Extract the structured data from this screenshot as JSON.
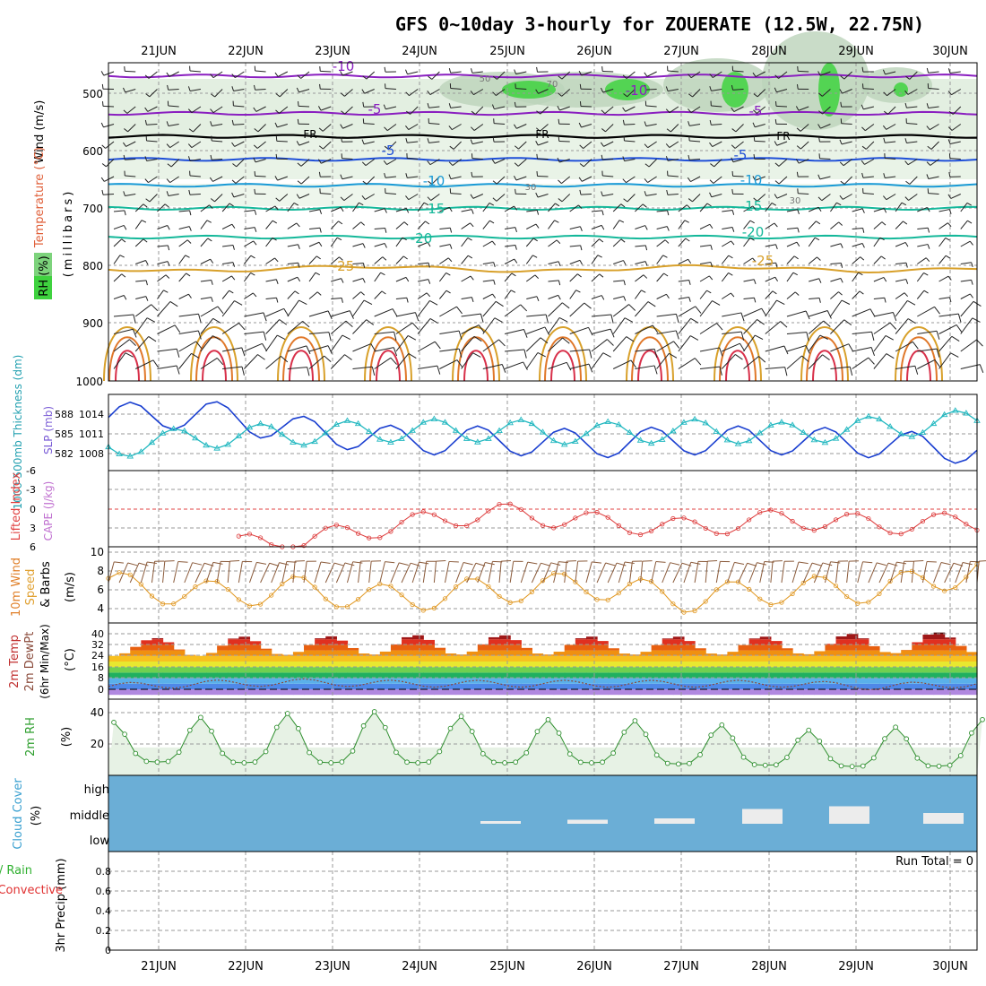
{
  "title": "GFS 0~10day 3-hourly for ZOUERATE (12.5W, 22.75N)",
  "days": [
    "21JUN",
    "22JUN",
    "23JUN",
    "24JUN",
    "25JUN",
    "26JUN",
    "27JUN",
    "28JUN",
    "29JUN",
    "30JUN"
  ],
  "colors": {
    "temp_purple": "#8a1fc0",
    "freezing": "#000000",
    "temp_blue": "#1f4fd8",
    "temp_lightblue": "#1a9ad6",
    "temp_teal": "#15b89a",
    "temp_orange": "#d8a02a",
    "rh_green": "#3fd23f",
    "slp": "#1a3fd0",
    "thickness": "#22b8c0",
    "lifted": "#dd3a3a",
    "wind10": "#e0961e",
    "cloud_bg": "#6baed6",
    "rh2m": "#2f8f2f"
  },
  "upper": {
    "ylabel_wind": "Wind (m/s)",
    "ylabel_temp": "Temperature (°C)",
    "ylabel_rh": "RH (%)",
    "ylabel_mb": "(millibars)",
    "pressure_ticks": [
      "500",
      "600",
      "700",
      "800",
      "900",
      "1000"
    ],
    "isotherm_labels": [
      "-10",
      "-10",
      "-5",
      "-5",
      "FR",
      "FR",
      "FR",
      "-5",
      "-5",
      "-10",
      "-10",
      "-15",
      "-15",
      "-20",
      "-20",
      "-25",
      "-25"
    ],
    "rh_labels": [
      "50",
      "70",
      "30",
      "30"
    ]
  },
  "slp_panel": {
    "ylabel_thickness": "1000-500mb Thickness (dm)",
    "ylabel_slp": "SLP (mb)",
    "thickness_ticks": [
      "588",
      "585",
      "582"
    ],
    "slp_ticks": [
      "1014",
      "1011",
      "1008"
    ]
  },
  "cape_panel": {
    "ylabel_li": "Lifted Index",
    "ylabel_cape": "CAPE (J/kg)",
    "li_ticks": [
      "-6",
      "-3",
      "0",
      "3",
      "6"
    ]
  },
  "wind_panel": {
    "ylabel": "10m Wind Speed (m/s) & Barbs",
    "ticks": [
      "10",
      "8",
      "6",
      "4"
    ]
  },
  "temp_panel": {
    "ylabel": "2m Temp 2m DewPt (6hr Min/Max) (°C)",
    "ticks": [
      "40",
      "32",
      "24",
      "16",
      "8",
      "0"
    ]
  },
  "rh_panel": {
    "ylabel": "2m RH (%)",
    "ticks": [
      "40",
      "20"
    ]
  },
  "cloud_panel": {
    "ylabel": "Cloud Cover (%)",
    "levels": [
      "high",
      "middle",
      "low"
    ]
  },
  "precip_panel": {
    "ylabel_total_rain": "Total / Rain",
    "ylabel_convective": "Convective",
    "ylabel": "3hr Precip (mm)",
    "ticks": [
      "0.8",
      "0.6",
      "0.4",
      "0.2",
      "0"
    ],
    "run_total": "Run Total = 0"
  },
  "chart_data": [
    {
      "type": "line",
      "title": "GFS 0~10day 3-hourly for ZOUERATE (12.5W, 22.75N)",
      "panel": "Sea level pressure and 1000-500mb thickness",
      "x": [
        "21JUN",
        "22JUN",
        "23JUN",
        "24JUN",
        "25JUN",
        "26JUN",
        "27JUN",
        "28JUN",
        "29JUN",
        "30JUN"
      ],
      "series": [
        {
          "name": "SLP (mb)",
          "values": [
            1013.5,
            1014.0,
            1011.5,
            1010.0,
            1010.0,
            1009.5,
            1010.0,
            1010.0,
            1009.5,
            1008.5
          ]
        },
        {
          "name": "1000-500mb Thickness (dm)",
          "values": [
            583.0,
            584.5,
            585.0,
            585.5,
            585.5,
            585.0,
            585.5,
            585.0,
            586.0,
            587.0
          ]
        }
      ]
    },
    {
      "type": "line",
      "panel": "Lifted Index",
      "x": [
        "21JUN",
        "22JUN",
        "23JUN",
        "24JUN",
        "25JUN",
        "26JUN",
        "27JUN",
        "28JUN",
        "29JUN",
        "30JUN"
      ],
      "series": [
        {
          "name": "Lifted Index",
          "values": [
            6.5,
            6.0,
            5.0,
            2.5,
            0.5,
            2.0,
            3.0,
            1.5,
            2.5,
            2.0
          ]
        }
      ],
      "ylim": [
        6,
        -6
      ]
    },
    {
      "type": "line",
      "panel": "10m Wind Speed (m/s)",
      "x": [
        "21JUN",
        "22JUN",
        "23JUN",
        "24JUN",
        "25JUN",
        "26JUN",
        "27JUN",
        "28JUN",
        "29JUN",
        "30JUN"
      ],
      "series": [
        {
          "name": "10m Wind Speed",
          "values": [
            6.5,
            5.5,
            6.0,
            5.0,
            6.0,
            6.5,
            5.0,
            6.0,
            6.0,
            8.0
          ]
        }
      ],
      "ylim": [
        3,
        10
      ]
    },
    {
      "type": "line",
      "panel": "2m Temp and DewPt (°C)",
      "x": [
        "21JUN",
        "22JUN",
        "23JUN",
        "24JUN",
        "25JUN",
        "26JUN",
        "27JUN",
        "28JUN",
        "29JUN",
        "30JUN"
      ],
      "series": [
        {
          "name": "2m Temp max",
          "values": [
            36,
            38,
            38,
            39,
            39,
            38,
            38,
            38,
            41,
            41
          ]
        },
        {
          "name": "2m Temp min",
          "values": [
            24,
            24,
            25,
            25,
            25,
            25,
            25,
            25,
            26,
            26
          ]
        },
        {
          "name": "2m DewPt",
          "values": [
            2,
            4,
            5,
            4,
            4,
            4,
            4,
            4,
            2,
            4
          ]
        }
      ],
      "ylim": [
        -4,
        44
      ]
    },
    {
      "type": "area",
      "panel": "2m RH (%)",
      "x": [
        "21JUN",
        "22JUN",
        "23JUN",
        "24JUN",
        "25JUN",
        "26JUN",
        "27JUN",
        "28JUN",
        "29JUN",
        "30JUN"
      ],
      "series": [
        {
          "name": "2m RH max",
          "values": [
            38,
            42,
            45,
            46,
            40,
            40,
            38,
            32,
            34,
            40
          ]
        },
        {
          "name": "2m RH min",
          "values": [
            10,
            9,
            9,
            9,
            9,
            9,
            8,
            7,
            6,
            7
          ]
        }
      ],
      "ylim": [
        0,
        50
      ]
    },
    {
      "type": "bar",
      "panel": "Cloud Cover (%) middle layer",
      "x": [
        "21JUN",
        "22JUN",
        "23JUN",
        "24JUN",
        "25JUN",
        "26JUN",
        "27JUN",
        "28JUN",
        "29JUN",
        "30JUN"
      ],
      "series": [
        {
          "name": "middle",
          "values": [
            0,
            0,
            0,
            0,
            10,
            15,
            20,
            55,
            65,
            40
          ]
        }
      ],
      "ylim": [
        0,
        100
      ]
    },
    {
      "type": "bar",
      "panel": "3hr Precip (mm)",
      "x": [
        "21JUN",
        "22JUN",
        "23JUN",
        "24JUN",
        "25JUN",
        "26JUN",
        "27JUN",
        "28JUN",
        "29JUN",
        "30JUN"
      ],
      "series": [
        {
          "name": "3hr Precip",
          "values": [
            0,
            0,
            0,
            0,
            0,
            0,
            0,
            0,
            0,
            0
          ]
        }
      ],
      "ylim": [
        0,
        1.0
      ]
    }
  ]
}
